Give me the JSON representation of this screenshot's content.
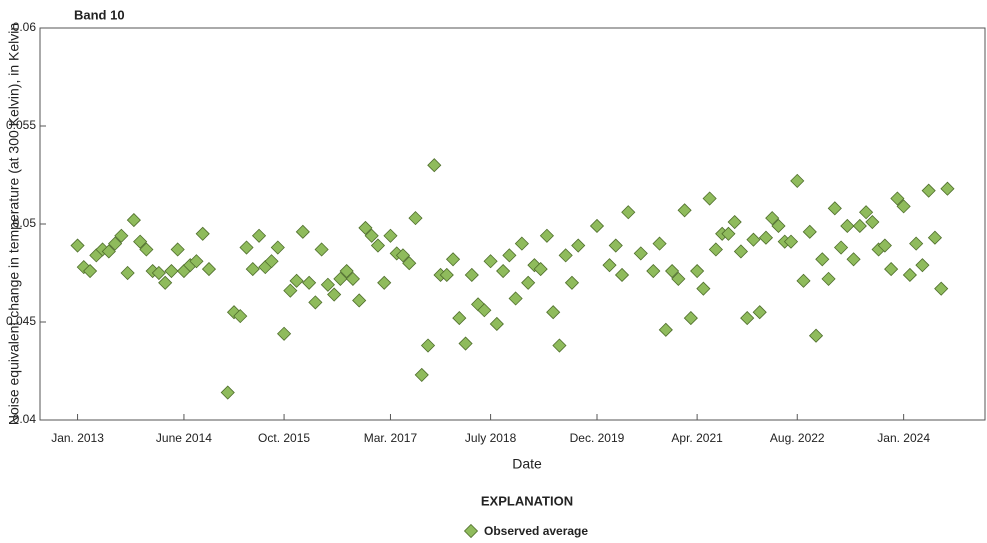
{
  "chart_data": {
    "type": "scatter",
    "title": "Band 10",
    "xlabel": "Date",
    "ylabel": "Noise equivalent change in temperature (at 300 Kelvin), in Kelvin",
    "legend_title": "EXPLANATION",
    "legend": "bottom",
    "grid": false,
    "xlim": [
      "2012-07",
      "2025-02"
    ],
    "xticks": [
      {
        "value": "2013-01",
        "label": "Jan. 2013"
      },
      {
        "value": "2014-06",
        "label": "June 2014"
      },
      {
        "value": "2015-10",
        "label": "Oct. 2015"
      },
      {
        "value": "2017-03",
        "label": "Mar. 2017"
      },
      {
        "value": "2018-07",
        "label": "July 2018"
      },
      {
        "value": "2019-12",
        "label": "Dec. 2019"
      },
      {
        "value": "2021-04",
        "label": "Apr. 2021"
      },
      {
        "value": "2022-08",
        "label": "Aug. 2022"
      },
      {
        "value": "2024-01",
        "label": "Jan. 2024"
      }
    ],
    "ylim": [
      0.04,
      0.06
    ],
    "yticks": [
      0.04,
      0.045,
      0.05,
      0.055,
      0.06
    ],
    "series": [
      {
        "name": "Observed average",
        "color": "#8fbb5c",
        "x": [
          "2013-01",
          "2013-02",
          "2013-03",
          "2013-04",
          "2013-05",
          "2013-06",
          "2013-07",
          "2013-08",
          "2013-09",
          "2013-10",
          "2013-11",
          "2013-12",
          "2014-01",
          "2014-02",
          "2014-03",
          "2014-04",
          "2014-05",
          "2014-06",
          "2014-07",
          "2014-08",
          "2014-09",
          "2014-10",
          "2015-01",
          "2015-02",
          "2015-03",
          "2015-04",
          "2015-05",
          "2015-06",
          "2015-07",
          "2015-08",
          "2015-09",
          "2015-10",
          "2015-11",
          "2015-12",
          "2016-01",
          "2016-02",
          "2016-03",
          "2016-04",
          "2016-05",
          "2016-06",
          "2016-07",
          "2016-08",
          "2016-09",
          "2016-10",
          "2016-11",
          "2016-12",
          "2017-01",
          "2017-02",
          "2017-03",
          "2017-04",
          "2017-05",
          "2017-06",
          "2017-07",
          "2017-08",
          "2017-09",
          "2017-10",
          "2017-11",
          "2017-12",
          "2018-01",
          "2018-02",
          "2018-03",
          "2018-04",
          "2018-05",
          "2018-06",
          "2018-07",
          "2018-08",
          "2018-09",
          "2018-10",
          "2018-11",
          "2018-12",
          "2019-01",
          "2019-02",
          "2019-03",
          "2019-04",
          "2019-05",
          "2019-06",
          "2019-07",
          "2019-08",
          "2019-09",
          "2019-12",
          "2020-02",
          "2020-03",
          "2020-04",
          "2020-05",
          "2020-07",
          "2020-09",
          "2020-10",
          "2020-11",
          "2020-12",
          "2021-01",
          "2021-02",
          "2021-03",
          "2021-04",
          "2021-05",
          "2021-06",
          "2021-07",
          "2021-08",
          "2021-09",
          "2021-10",
          "2021-11",
          "2021-12",
          "2022-01",
          "2022-02",
          "2022-03",
          "2022-04",
          "2022-05",
          "2022-06",
          "2022-07",
          "2022-08",
          "2022-09",
          "2022-10",
          "2022-11",
          "2022-12",
          "2023-01",
          "2023-02",
          "2023-03",
          "2023-04",
          "2023-05",
          "2023-06",
          "2023-07",
          "2023-08",
          "2023-09",
          "2023-10",
          "2023-11",
          "2023-12",
          "2024-01",
          "2024-02",
          "2024-03",
          "2024-04",
          "2024-05",
          "2024-06",
          "2024-07",
          "2024-08"
        ],
        "values": [
          0.0489,
          0.0478,
          0.0476,
          0.0484,
          0.0487,
          0.0486,
          0.049,
          0.0494,
          0.0475,
          0.0502,
          0.0491,
          0.0487,
          0.0476,
          0.0475,
          0.047,
          0.0476,
          0.0487,
          0.0476,
          0.0479,
          0.0481,
          0.0495,
          0.0477,
          0.0414,
          0.0455,
          0.0453,
          0.0488,
          0.0477,
          0.0494,
          0.0478,
          0.0481,
          0.0488,
          0.0444,
          0.0466,
          0.0471,
          0.0496,
          0.047,
          0.046,
          0.0487,
          0.0469,
          0.0464,
          0.0472,
          0.0476,
          0.0472,
          0.0461,
          0.0498,
          0.0494,
          0.0489,
          0.047,
          0.0494,
          0.0485,
          0.0484,
          0.048,
          0.0503,
          0.0423,
          0.0438,
          0.053,
          0.0474,
          0.0474,
          0.0482,
          0.0452,
          0.0439,
          0.0474,
          0.0459,
          0.0456,
          0.0481,
          0.0449,
          0.0476,
          0.0484,
          0.0462,
          0.049,
          0.047,
          0.0479,
          0.0477,
          0.0494,
          0.0455,
          0.0438,
          0.0484,
          0.047,
          0.0489,
          0.0499,
          0.0479,
          0.0489,
          0.0474,
          0.0506,
          0.0485,
          0.0476,
          0.049,
          0.0446,
          0.0476,
          0.0472,
          0.0507,
          0.0452,
          0.0476,
          0.0467,
          0.0513,
          0.0487,
          0.0495,
          0.0495,
          0.0501,
          0.0486,
          0.0452,
          0.0492,
          0.0455,
          0.0493,
          0.0503,
          0.0499,
          0.0491,
          0.0491,
          0.0522,
          0.0471,
          0.0496,
          0.0443,
          0.0482,
          0.0472,
          0.0508,
          0.0488,
          0.0499,
          0.0482,
          0.0499,
          0.0506,
          0.0501,
          0.0487,
          0.0489,
          0.0477,
          0.0513,
          0.0509,
          0.0474,
          0.049,
          0.0479,
          0.0517,
          0.0493,
          0.0467,
          0.0518
        ]
      }
    ]
  }
}
